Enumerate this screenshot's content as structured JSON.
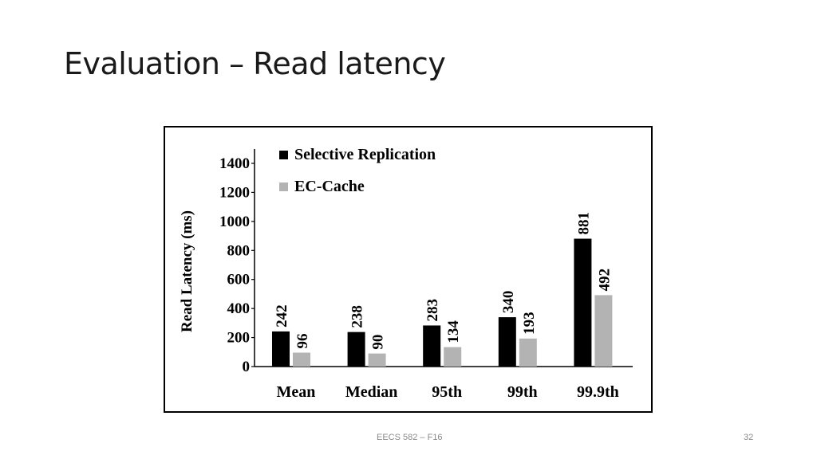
{
  "slide": {
    "title": "Evaluation – Read latency",
    "footer": "EECS 582 – F16",
    "page_number": "32"
  },
  "chart_data": {
    "type": "bar",
    "title": "",
    "xlabel": "",
    "ylabel": "Read Latency (ms)",
    "ylim": [
      0,
      1400
    ],
    "yticks": [
      0,
      200,
      400,
      600,
      800,
      1000,
      1200,
      1400
    ],
    "categories": [
      "Mean",
      "Median",
      "95th",
      "99th",
      "99.9th"
    ],
    "series": [
      {
        "name": "Selective Replication",
        "color": "#000000",
        "values": [
          242,
          238,
          283,
          340,
          881
        ]
      },
      {
        "name": "EC-Cache",
        "color": "#b3b3b3",
        "values": [
          96,
          90,
          134,
          193,
          492
        ]
      }
    ],
    "legend_position": "top-left",
    "grid": false
  }
}
